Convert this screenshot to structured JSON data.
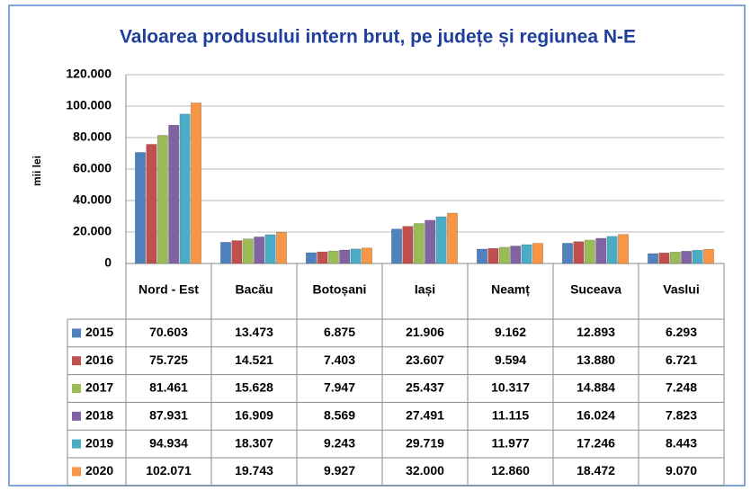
{
  "chart_data": {
    "type": "bar",
    "title": "Valoarea produsului intern brut, pe județe și regiunea N-E",
    "y_label": "mii lei",
    "categories": [
      "Nord - Est",
      "Bacău",
      "Botoșani",
      "Iași",
      "Neamț",
      "Suceava",
      "Vaslui"
    ],
    "series": [
      {
        "name": "2015",
        "color": "#4f81bd",
        "values": [
          70603,
          13473,
          6875,
          21906,
          9162,
          12893,
          6293
        ],
        "value_labels": [
          "70.603",
          "13.473",
          "6.875",
          "21.906",
          "9.162",
          "12.893",
          "6.293"
        ]
      },
      {
        "name": "2016",
        "color": "#c0504d",
        "values": [
          75725,
          14521,
          7403,
          23607,
          9594,
          13880,
          6721
        ],
        "value_labels": [
          "75.725",
          "14.521",
          "7.403",
          "23.607",
          "9.594",
          "13.880",
          "6.721"
        ]
      },
      {
        "name": "2017",
        "color": "#9bbb59",
        "values": [
          81461,
          15628,
          7947,
          25437,
          10317,
          14884,
          7248
        ],
        "value_labels": [
          "81.461",
          "15.628",
          "7.947",
          "25.437",
          "10.317",
          "14.884",
          "7.248"
        ]
      },
      {
        "name": "2018",
        "color": "#8064a2",
        "values": [
          87931,
          16909,
          8569,
          27491,
          11115,
          16024,
          7823
        ],
        "value_labels": [
          "87.931",
          "16.909",
          "8.569",
          "27.491",
          "11.115",
          "16.024",
          "7.823"
        ]
      },
      {
        "name": "2019",
        "color": "#4bacc6",
        "values": [
          94934,
          18307,
          9243,
          29719,
          11977,
          17246,
          8443
        ],
        "value_labels": [
          "94.934",
          "18.307",
          "9.243",
          "29.719",
          "11.977",
          "17.246",
          "8.443"
        ]
      },
      {
        "name": "2020",
        "color": "#f79646",
        "values": [
          102071,
          19743,
          9927,
          32000,
          12860,
          18472,
          9070
        ],
        "value_labels": [
          "102.071",
          "19.743",
          "9.927",
          "32.000",
          "12.860",
          "18.472",
          "9.070"
        ]
      }
    ],
    "ylim": [
      0,
      120000
    ],
    "yticks": [
      0,
      {
        "value": 20000,
        "label": "20.000"
      },
      {
        "value": 40000,
        "label": "40.000"
      },
      {
        "value": 60000,
        "label": "60.000"
      },
      {
        "value": 80000,
        "label": "80.000"
      },
      {
        "value": 100000,
        "label": "100.000"
      },
      {
        "value": 120000,
        "label": "120.000"
      }
    ],
    "grid": true
  }
}
